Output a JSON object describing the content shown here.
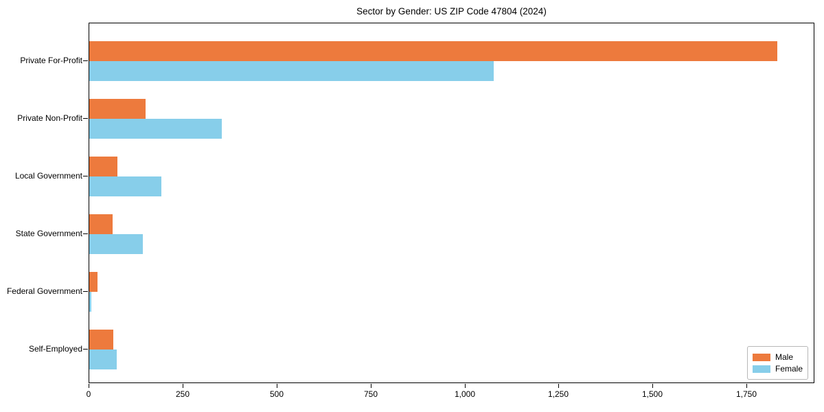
{
  "title": "Sector by Gender: US ZIP Code 47804 (2024)",
  "legend": {
    "male_label": "Male",
    "female_label": "Female"
  },
  "colors": {
    "male": "#ed7a3d",
    "female": "#87ceea"
  },
  "chart_data": {
    "type": "bar",
    "orientation": "horizontal",
    "title": "Sector by Gender: US ZIP Code 47804 (2024)",
    "categories": [
      "Private For-Profit",
      "Private Non-Profit",
      "Local Government",
      "State Government",
      "Federal Government",
      "Self-Employed"
    ],
    "series": [
      {
        "name": "Male",
        "color": "#ed7a3d",
        "values": [
          1830,
          150,
          75,
          62,
          22,
          64
        ]
      },
      {
        "name": "Female",
        "color": "#87ceea",
        "values": [
          1075,
          352,
          192,
          143,
          6,
          73
        ]
      }
    ],
    "xlabel": "",
    "ylabel": "",
    "xlim": [
      0,
      1925
    ],
    "xticks": [
      0,
      250,
      500,
      750,
      1000,
      1250,
      1500,
      1750
    ],
    "xtick_labels": [
      "0",
      "250",
      "500",
      "750",
      "1,000",
      "1,250",
      "1,500",
      "1,750"
    ],
    "grid": false,
    "legend_position": "lower right"
  }
}
